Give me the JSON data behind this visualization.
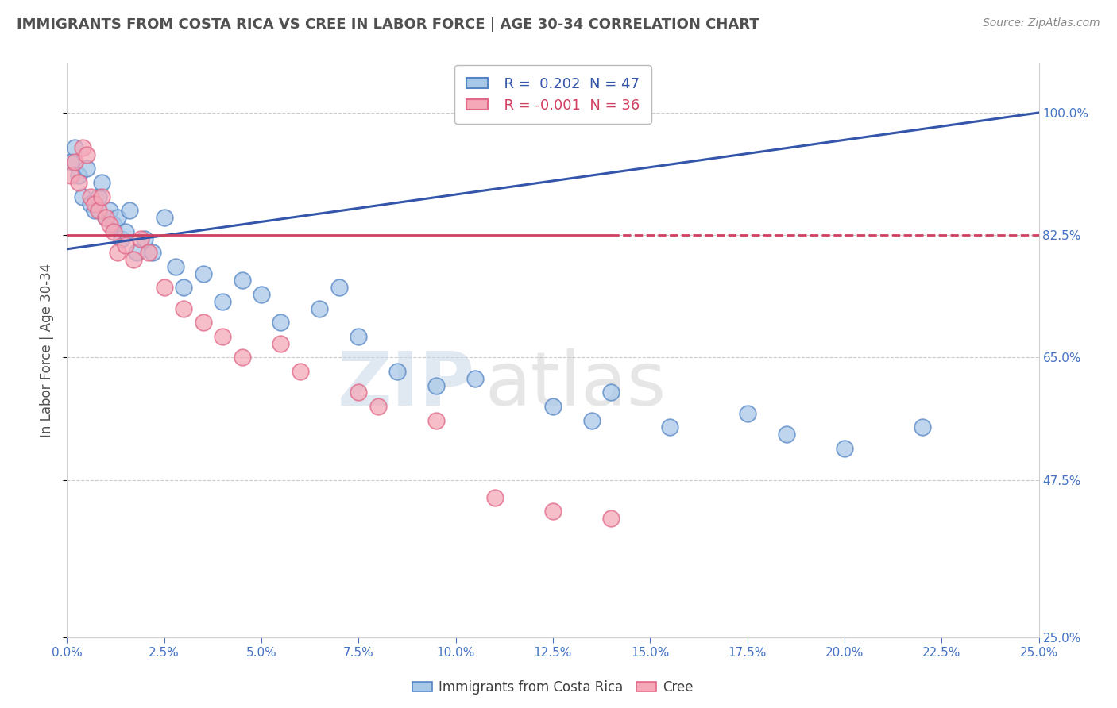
{
  "title": "IMMIGRANTS FROM COSTA RICA VS CREE IN LABOR FORCE | AGE 30-34 CORRELATION CHART",
  "source": "Source: ZipAtlas.com",
  "ylabel": "In Labor Force | Age 30-34",
  "xlim": [
    0.0,
    25.0
  ],
  "ylim": [
    25.0,
    107.0
  ],
  "yticks": [
    25.0,
    47.5,
    65.0,
    82.5,
    100.0
  ],
  "xticks": [
    0.0,
    2.5,
    5.0,
    7.5,
    10.0,
    12.5,
    15.0,
    17.5,
    20.0,
    22.5,
    25.0
  ],
  "blue_R": 0.202,
  "blue_N": 47,
  "pink_R": -0.001,
  "pink_N": 36,
  "legend_label_blue": "Immigrants from Costa Rica",
  "legend_label_pink": "Cree",
  "blue_scatter_x": [
    0.1,
    0.2,
    0.3,
    0.4,
    0.5,
    0.6,
    0.7,
    0.8,
    0.9,
    1.0,
    1.1,
    1.2,
    1.3,
    1.4,
    1.5,
    1.6,
    1.8,
    2.0,
    2.2,
    2.5,
    2.8,
    3.0,
    3.5,
    4.0,
    4.5,
    5.0,
    5.5,
    6.5,
    7.0,
    7.5,
    8.5,
    9.5,
    10.5,
    12.5,
    13.5,
    14.0,
    15.5,
    17.5,
    18.5,
    20.0,
    22.0
  ],
  "blue_scatter_y": [
    93.0,
    95.0,
    91.0,
    88.0,
    92.0,
    87.0,
    86.0,
    88.0,
    90.0,
    85.0,
    86.0,
    84.0,
    85.0,
    82.0,
    83.0,
    86.0,
    80.0,
    82.0,
    80.0,
    85.0,
    78.0,
    75.0,
    77.0,
    73.0,
    76.0,
    74.0,
    70.0,
    72.0,
    75.0,
    68.0,
    63.0,
    61.0,
    62.0,
    58.0,
    56.0,
    60.0,
    55.0,
    57.0,
    54.0,
    52.0,
    55.0
  ],
  "pink_scatter_x": [
    0.1,
    0.2,
    0.3,
    0.4,
    0.5,
    0.6,
    0.7,
    0.8,
    0.9,
    1.0,
    1.1,
    1.2,
    1.3,
    1.5,
    1.7,
    1.9,
    2.1,
    2.5,
    3.0,
    3.5,
    4.0,
    4.5,
    5.5,
    6.0,
    7.5,
    8.0,
    9.5,
    11.0,
    12.5,
    14.0
  ],
  "pink_scatter_y": [
    91.0,
    93.0,
    90.0,
    95.0,
    94.0,
    88.0,
    87.0,
    86.0,
    88.0,
    85.0,
    84.0,
    83.0,
    80.0,
    81.0,
    79.0,
    82.0,
    80.0,
    75.0,
    72.0,
    70.0,
    68.0,
    65.0,
    67.0,
    63.0,
    60.0,
    58.0,
    56.0,
    45.0,
    43.0,
    42.0
  ],
  "blue_color": "#a8c8e8",
  "pink_color": "#f4a8b8",
  "blue_edge_color": "#5585c5",
  "pink_edge_color": "#e06888",
  "blue_line_color": "#3355aa",
  "pink_line_color": "#d04060",
  "watermark_zip": "ZIP",
  "watermark_atlas": "atlas",
  "background_color": "#ffffff",
  "grid_color": "#cccccc",
  "title_color": "#505050",
  "tick_color": "#4472c4",
  "pink_line_solid_end": 14.0,
  "blue_trend_y0": 80.5,
  "blue_trend_y1": 100.0,
  "pink_trend_y": 82.5
}
